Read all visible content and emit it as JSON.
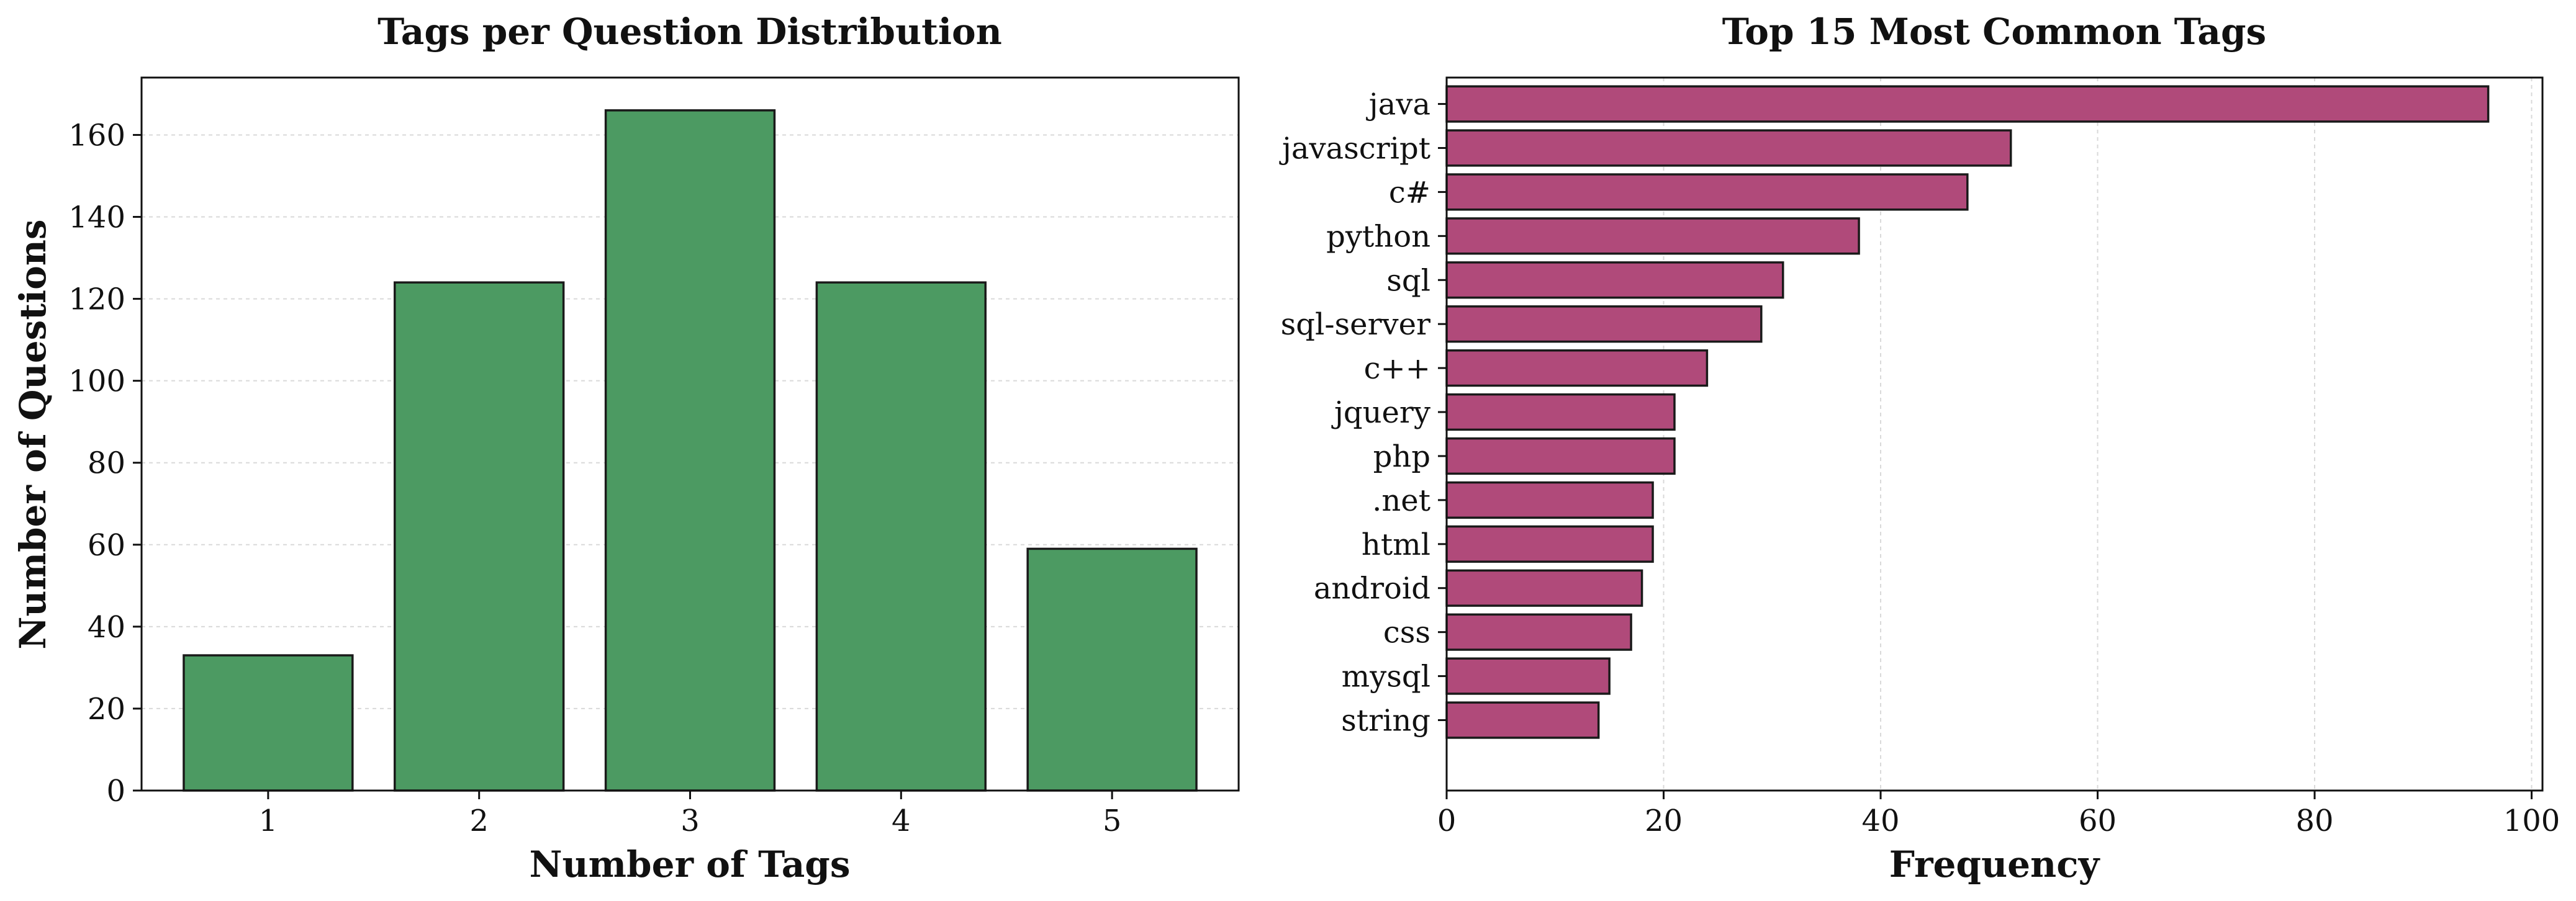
{
  "colors": {
    "left_bar": "#4c9a62",
    "right_bar": "#b04a7a"
  },
  "chart_data": [
    {
      "type": "bar",
      "title": "Tags per Question Distribution",
      "xlabel": "Number of Tags",
      "ylabel": "Number of Questions",
      "categories": [
        "1",
        "2",
        "3",
        "4",
        "5"
      ],
      "values": [
        33,
        124,
        166,
        124,
        59
      ],
      "ylim": [
        0,
        174
      ],
      "yticks": [
        0,
        20,
        40,
        60,
        80,
        100,
        120,
        140,
        160
      ],
      "ytick_labels": [
        "0",
        "20",
        "40",
        "60",
        "80",
        "100",
        "120",
        "140",
        "160"
      ],
      "grid": true
    },
    {
      "type": "bar",
      "orientation": "horizontal",
      "title": "Top 15 Most Common Tags",
      "xlabel": "Frequency",
      "ylabel": "",
      "categories": [
        "java",
        "javascript",
        "c#",
        "python",
        "sql",
        "sql-server",
        "c++",
        "jquery",
        "php",
        ".net",
        "html",
        "android",
        "css",
        "mysql",
        "string"
      ],
      "values": [
        96,
        52,
        48,
        38,
        31,
        29,
        24,
        21,
        21,
        19,
        19,
        18,
        17,
        15,
        14
      ],
      "xlim": [
        0,
        101
      ],
      "xticks": [
        0,
        20,
        40,
        60,
        80,
        100
      ],
      "xtick_labels": [
        "0",
        "20",
        "40",
        "60",
        "80",
        "100"
      ],
      "grid": true
    }
  ]
}
